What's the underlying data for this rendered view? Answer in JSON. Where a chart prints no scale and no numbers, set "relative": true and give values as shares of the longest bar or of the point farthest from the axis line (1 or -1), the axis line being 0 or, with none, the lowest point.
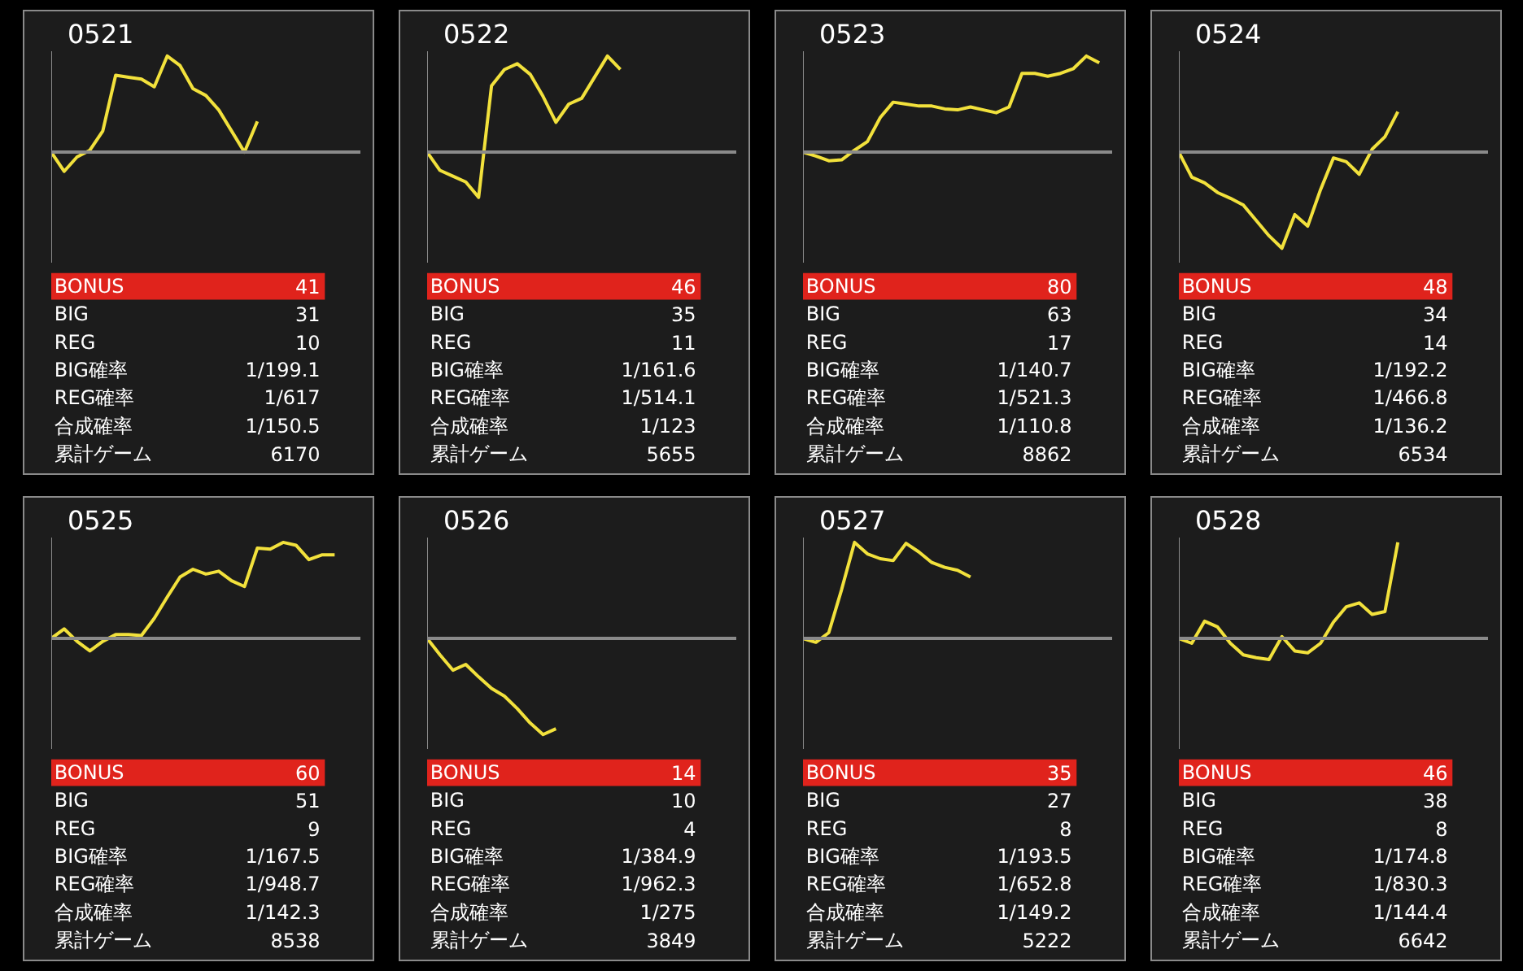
{
  "chart_data": [
    {
      "type": "line",
      "title": "0521",
      "relative": true,
      "categories": [
        null,
        null,
        null,
        null,
        null,
        null,
        null,
        null,
        null,
        null,
        null,
        null,
        null,
        null,
        null,
        null,
        null,
        null,
        null,
        null,
        null,
        null,
        null,
        null,
        null
      ],
      "series": [
        {
          "color": "#f2e13c",
          "values": [
            0,
            -0.2,
            -0.05,
            0.02,
            0.22,
            0.8,
            0.78,
            0.76,
            0.68,
            1,
            0.9,
            0.66,
            0.59,
            0.44,
            0.22,
            0,
            0.32,
            null,
            null,
            null,
            null,
            null,
            null,
            null,
            null
          ]
        }
      ],
      "annotations": [
        "BONUS",
        "41",
        "BIG",
        "31",
        "REG",
        "10",
        "BIG確率",
        "1/199.1",
        "REG確率",
        "1/617",
        "合成確率",
        "1/150.5",
        "累計ゲーム",
        "6170"
      ]
    },
    {
      "type": "line",
      "title": "0522",
      "relative": true,
      "categories": [
        null,
        null,
        null,
        null,
        null,
        null,
        null,
        null,
        null,
        null,
        null,
        null,
        null,
        null,
        null,
        null,
        null,
        null,
        null,
        null,
        null,
        null,
        null,
        null,
        null
      ],
      "series": [
        {
          "color": "#f2e13c",
          "values": [
            0,
            -0.19,
            -0.25,
            -0.31,
            -0.47,
            0.69,
            0.86,
            0.92,
            0.81,
            0.58,
            0.31,
            0.5,
            0.56,
            0.78,
            1,
            0.86,
            null,
            null,
            null,
            null,
            null,
            null,
            null,
            null,
            null
          ]
        }
      ],
      "annotations": [
        "BONUS",
        "46",
        "BIG",
        "35",
        "REG",
        "11",
        "BIG確率",
        "1/161.6",
        "REG確率",
        "1/514.1",
        "合成確率",
        "1/123",
        "累計ゲーム",
        "5655"
      ]
    },
    {
      "type": "line",
      "title": "0523",
      "relative": true,
      "categories": [
        null,
        null,
        null,
        null,
        null,
        null,
        null,
        null,
        null,
        null,
        null,
        null,
        null,
        null,
        null,
        null,
        null,
        null,
        null,
        null,
        null,
        null,
        null,
        null,
        null
      ],
      "series": [
        {
          "color": "#f2e13c",
          "values": [
            0,
            -0.04,
            -0.09,
            -0.08,
            0.02,
            0.11,
            0.36,
            0.52,
            0.5,
            0.48,
            0.48,
            0.45,
            0.44,
            0.47,
            0.44,
            0.41,
            0.47,
            0.82,
            0.82,
            0.79,
            0.82,
            0.87,
            1,
            0.93,
            null
          ]
        }
      ],
      "annotations": [
        "BONUS",
        "80",
        "BIG",
        "63",
        "REG",
        "17",
        "BIG確率",
        "1/140.7",
        "REG確率",
        "1/521.3",
        "合成確率",
        "1/110.8",
        "累計ゲーム",
        "8862"
      ]
    },
    {
      "type": "line",
      "title": "0524",
      "relative": true,
      "categories": [
        null,
        null,
        null,
        null,
        null,
        null,
        null,
        null,
        null,
        null,
        null,
        null,
        null,
        null,
        null,
        null,
        null,
        null,
        null,
        null,
        null,
        null,
        null,
        null,
        null
      ],
      "series": [
        {
          "color": "#f2e13c",
          "values": [
            0,
            -0.26,
            -0.32,
            -0.42,
            -0.48,
            -0.55,
            -0.71,
            -0.87,
            -1,
            -0.65,
            -0.77,
            -0.39,
            -0.06,
            -0.1,
            -0.23,
            0.03,
            0.16,
            0.42,
            null,
            null,
            null,
            null,
            null,
            null,
            null
          ]
        }
      ],
      "annotations": [
        "BONUS",
        "48",
        "BIG",
        "34",
        "REG",
        "14",
        "BIG確率",
        "1/192.2",
        "REG確率",
        "1/466.8",
        "合成確率",
        "1/136.2",
        "累計ゲーム",
        "6534"
      ]
    },
    {
      "type": "line",
      "title": "0525",
      "relative": true,
      "categories": [
        null,
        null,
        null,
        null,
        null,
        null,
        null,
        null,
        null,
        null,
        null,
        null,
        null,
        null,
        null,
        null,
        null,
        null,
        null,
        null,
        null,
        null,
        null,
        null,
        null
      ],
      "series": [
        {
          "color": "#f2e13c",
          "values": [
            0,
            0.1,
            -0.03,
            -0.13,
            -0.03,
            0.04,
            0.04,
            0.03,
            0.21,
            0.43,
            0.64,
            0.72,
            0.67,
            0.7,
            0.6,
            0.54,
            0.94,
            0.93,
            1,
            0.97,
            0.82,
            0.87,
            0.87,
            null,
            null
          ]
        }
      ],
      "annotations": [
        "BONUS",
        "60",
        "BIG",
        "51",
        "REG",
        "9",
        "BIG確率",
        "1/167.5",
        "REG確率",
        "1/948.7",
        "合成確率",
        "1/142.3",
        "累計ゲーム",
        "8538"
      ]
    },
    {
      "type": "line",
      "title": "0526",
      "relative": true,
      "categories": [
        null,
        null,
        null,
        null,
        null,
        null,
        null,
        null,
        null,
        null,
        null,
        null,
        null,
        null,
        null,
        null,
        null,
        null,
        null,
        null,
        null,
        null,
        null,
        null,
        null
      ],
      "series": [
        {
          "color": "#f2e13c",
          "values": [
            0,
            -0.17,
            -0.33,
            -0.27,
            -0.4,
            -0.52,
            -0.6,
            -0.73,
            -0.88,
            -1,
            -0.94,
            null,
            null,
            null,
            null,
            null,
            null,
            null,
            null,
            null,
            null,
            null,
            null,
            null,
            null
          ]
        }
      ],
      "annotations": [
        "BONUS",
        "14",
        "BIG",
        "10",
        "REG",
        "4",
        "BIG確率",
        "1/384.9",
        "REG確率",
        "1/962.3",
        "合成確率",
        "1/275",
        "累計ゲーム",
        "3849"
      ]
    },
    {
      "type": "line",
      "title": "0527",
      "relative": true,
      "categories": [
        null,
        null,
        null,
        null,
        null,
        null,
        null,
        null,
        null,
        null,
        null,
        null,
        null,
        null,
        null,
        null,
        null,
        null,
        null,
        null,
        null,
        null,
        null,
        null,
        null
      ],
      "series": [
        {
          "color": "#f2e13c",
          "values": [
            0,
            -0.04,
            0.06,
            0.51,
            1,
            0.88,
            0.83,
            0.81,
            0.99,
            0.9,
            0.79,
            0.74,
            0.71,
            0.64,
            null,
            null,
            null,
            null,
            null,
            null,
            null,
            null,
            null,
            null,
            null
          ]
        }
      ],
      "annotations": [
        "BONUS",
        "35",
        "BIG",
        "27",
        "REG",
        "8",
        "BIG確率",
        "1/193.5",
        "REG確率",
        "1/652.8",
        "合成確率",
        "1/149.2",
        "累計ゲーム",
        "5222"
      ]
    },
    {
      "type": "line",
      "title": "0528",
      "relative": true,
      "categories": [
        null,
        null,
        null,
        null,
        null,
        null,
        null,
        null,
        null,
        null,
        null,
        null,
        null,
        null,
        null,
        null,
        null,
        null,
        null,
        null,
        null,
        null,
        null,
        null,
        null
      ],
      "series": [
        {
          "color": "#f2e13c",
          "values": [
            0,
            -0.05,
            0.18,
            0.12,
            -0.05,
            -0.17,
            -0.2,
            -0.22,
            0.02,
            -0.13,
            -0.15,
            -0.05,
            0.17,
            0.33,
            0.37,
            0.25,
            0.28,
            1,
            null,
            null,
            null,
            null,
            null,
            null,
            null
          ]
        }
      ],
      "annotations": [
        "BONUS",
        "46",
        "BIG",
        "38",
        "REG",
        "8",
        "BIG確率",
        "1/174.8",
        "REG確率",
        "1/830.3",
        "合成確率",
        "1/144.4",
        "累計ゲーム",
        "6642"
      ]
    }
  ]
}
